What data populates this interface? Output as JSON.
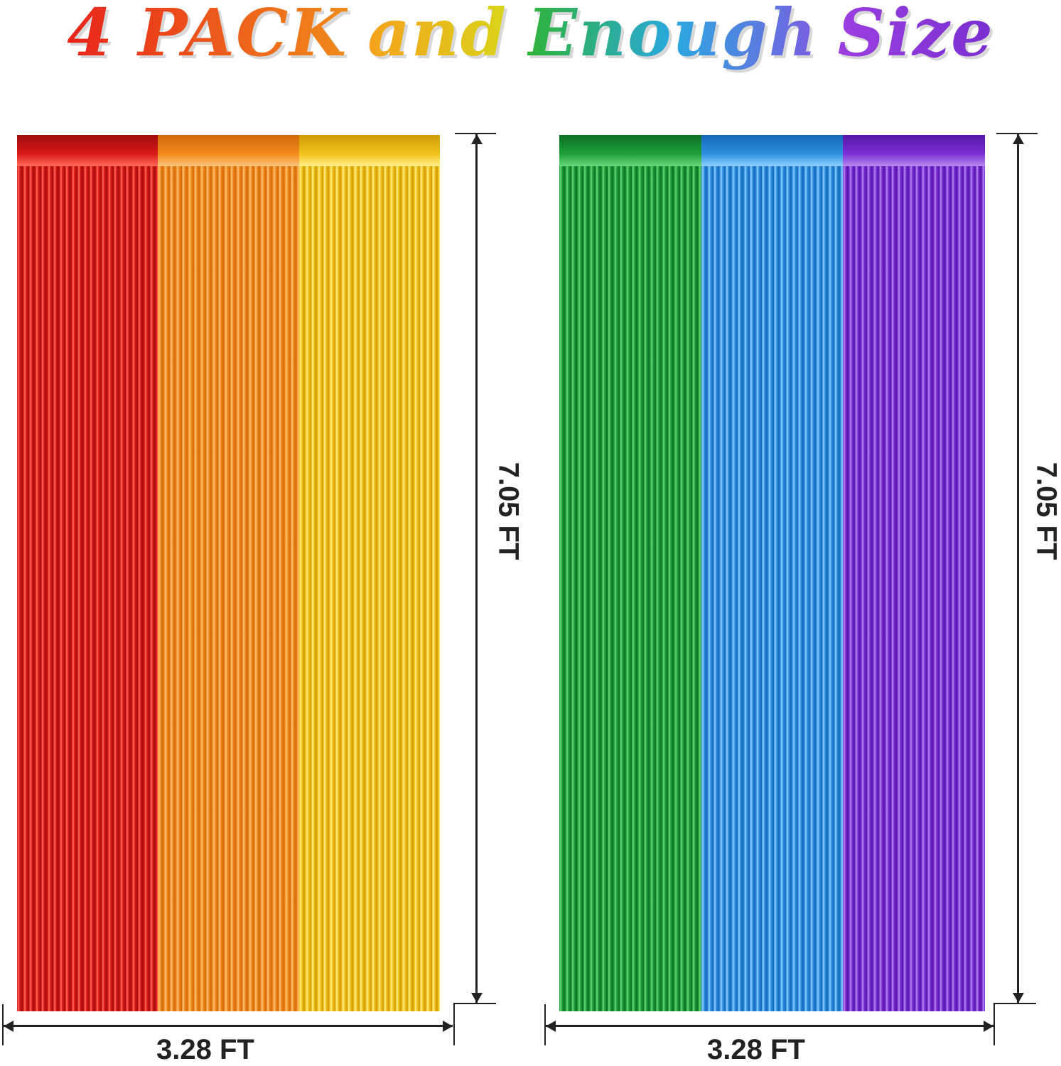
{
  "headline": {
    "words": [
      {
        "text": "4 PACK",
        "colors": [
          "#e8231c",
          "#f08a1a"
        ]
      },
      {
        "text": "and",
        "colors": [
          "#f5a21b",
          "#d9d41a"
        ]
      },
      {
        "text": "Enough",
        "colors": [
          "#2fb336",
          "#2aa8e0",
          "#7a5de0"
        ]
      },
      {
        "text": "Size",
        "colors": [
          "#9b3fe0",
          "#7a2fd0"
        ]
      }
    ]
  },
  "curtains": [
    {
      "strips": [
        {
          "color": "#d81818",
          "dark": "#a00c0c",
          "light": "#ff6a5a"
        },
        {
          "color": "#f28a1c",
          "dark": "#d0680a",
          "light": "#ffc47a"
        },
        {
          "color": "#f2c21a",
          "dark": "#d09a08",
          "light": "#fff08a"
        }
      ],
      "height_label": "7.05 FT",
      "width_label": "3.28 FT"
    },
    {
      "strips": [
        {
          "color": "#1f9e3a",
          "dark": "#0c7024",
          "light": "#6ad87a"
        },
        {
          "color": "#2e8fe0",
          "dark": "#1466b8",
          "light": "#8ed0ff"
        },
        {
          "color": "#7a2fd4",
          "dark": "#5414a8",
          "light": "#b88af0"
        }
      ],
      "height_label": "7.05 FT",
      "width_label": "3.28 FT"
    }
  ]
}
